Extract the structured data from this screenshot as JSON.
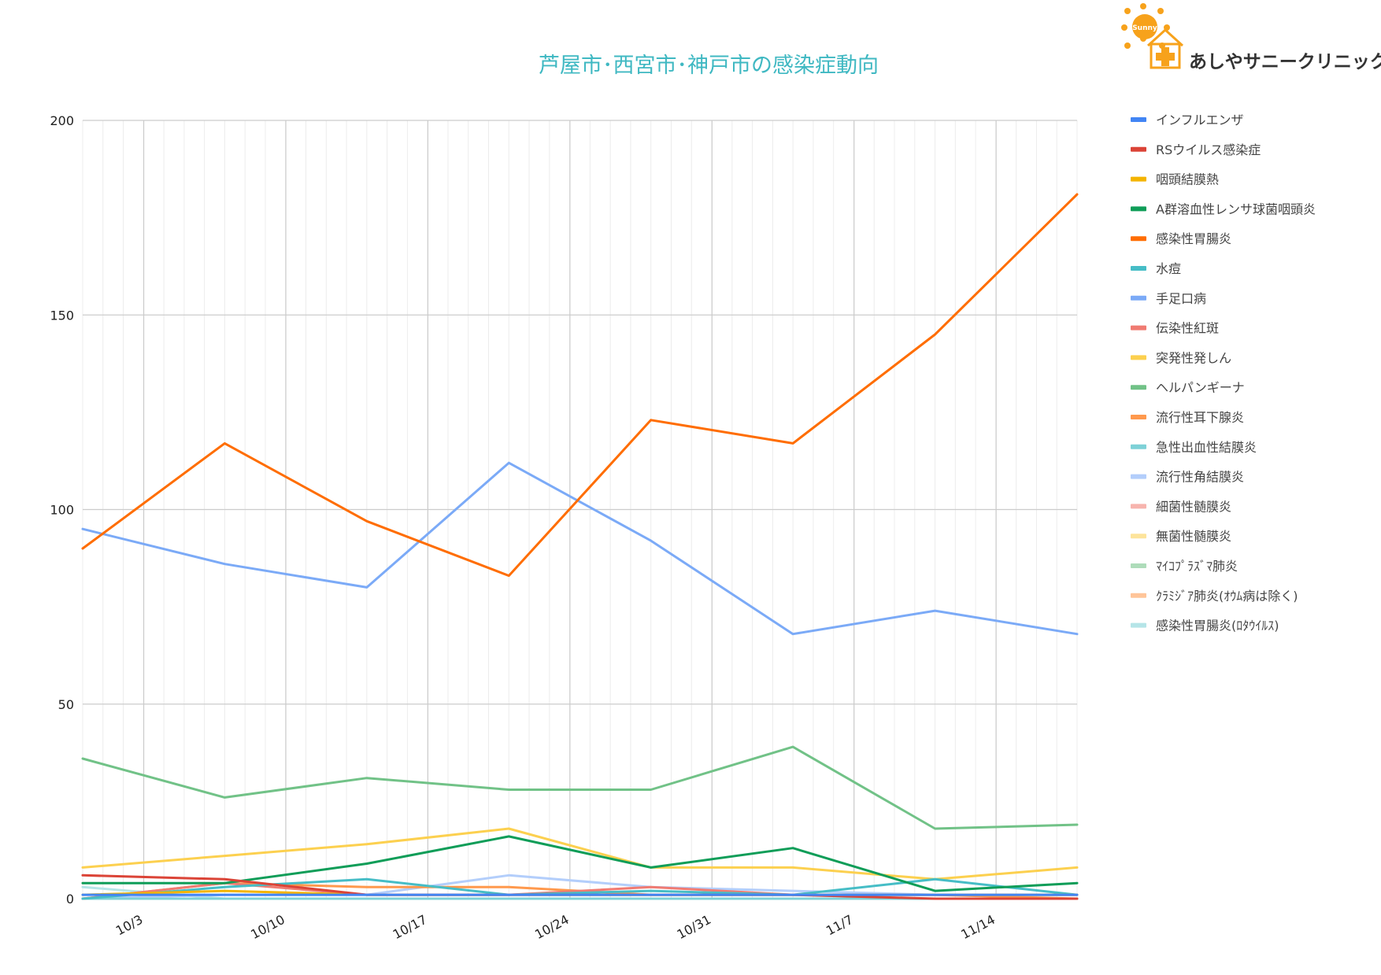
{
  "logo": {
    "name": "あしやサニークリニック",
    "sun_text": "Sunny"
  },
  "chart_data": {
    "type": "line",
    "title": "芦屋市･西宮市･神戸市の感染症動向",
    "xlabel": "",
    "ylabel": "",
    "ylim": [
      0,
      200
    ],
    "y_ticks": [
      0,
      50,
      100,
      150,
      200
    ],
    "x_ticks": [
      {
        "label": "10/3",
        "week": 0.43
      },
      {
        "label": "10/10",
        "week": 1.43
      },
      {
        "label": "10/17",
        "week": 2.43
      },
      {
        "label": "10/24",
        "week": 3.43
      },
      {
        "label": "10/31",
        "week": 4.43
      },
      {
        "label": "11/7",
        "week": 5.43
      },
      {
        "label": "11/14",
        "week": 6.43
      }
    ],
    "x": [
      "9/30",
      "10/7",
      "10/14",
      "10/21",
      "10/28",
      "11/4",
      "11/11",
      "11/18"
    ],
    "grid": true,
    "legend_position": "right",
    "series": [
      {
        "name": "インフルエンザ",
        "color": "#4285f4",
        "values": [
          1,
          1,
          1,
          1,
          1,
          1,
          1,
          1
        ]
      },
      {
        "name": "RSウイルス感染症",
        "color": "#db4437",
        "values": [
          6,
          5,
          1,
          1,
          1,
          1,
          0,
          0
        ]
      },
      {
        "name": "咽頭結膜熱",
        "color": "#f4b400",
        "values": [
          1,
          2,
          1,
          1,
          1,
          1,
          1,
          1
        ]
      },
      {
        "name": "A群溶血性レンサ球菌咽頭炎",
        "color": "#0f9d58",
        "values": [
          4,
          4,
          9,
          16,
          8,
          13,
          2,
          4
        ]
      },
      {
        "name": "感染性胃腸炎",
        "color": "#ff6d01",
        "values": [
          90,
          117,
          97,
          83,
          123,
          117,
          145,
          181
        ]
      },
      {
        "name": "水痘",
        "color": "#46bdc6",
        "values": [
          0,
          3,
          5,
          1,
          2,
          1,
          5,
          1
        ]
      },
      {
        "name": "手足口病",
        "color": "#7baaf7",
        "values": [
          95,
          86,
          80,
          112,
          92,
          68,
          74,
          68
        ]
      },
      {
        "name": "伝染性紅斑",
        "color": "#f07b72",
        "values": [
          0,
          4,
          1,
          1,
          3,
          1,
          1,
          1
        ]
      },
      {
        "name": "突発性発しん",
        "color": "#fcd04f",
        "values": [
          8,
          11,
          14,
          18,
          8,
          8,
          5,
          8
        ]
      },
      {
        "name": "ヘルパンギーナ",
        "color": "#71c287",
        "values": [
          36,
          26,
          31,
          28,
          28,
          39,
          18,
          19
        ]
      },
      {
        "name": "流行性耳下腺炎",
        "color": "#ff994d",
        "values": [
          0,
          4,
          3,
          3,
          1,
          1,
          1,
          0
        ]
      },
      {
        "name": "急性出血性結膜炎",
        "color": "#7ed1d7",
        "values": [
          0,
          0,
          0,
          0,
          0,
          0,
          0,
          0
        ]
      },
      {
        "name": "流行性角結膜炎",
        "color": "#b3cefb",
        "values": [
          0,
          1,
          1,
          6,
          3,
          2,
          1,
          1
        ]
      },
      {
        "name": "細菌性髄膜炎",
        "color": "#f7b4ae",
        "values": [
          0,
          0,
          0,
          0,
          0,
          0,
          0,
          0
        ]
      },
      {
        "name": "無菌性髄膜炎",
        "color": "#fde49b",
        "values": [
          0,
          0,
          0,
          0,
          0,
          0,
          0,
          0
        ]
      },
      {
        "name": "ﾏｲｺﾌﾟﾗｽﾞﾏ肺炎",
        "color": "#aedcba",
        "values": [
          0,
          0,
          0,
          0,
          0,
          0,
          0,
          0
        ]
      },
      {
        "name": "ｸﾗﾐｼﾞｱ肺炎(ｵｳﾑ病は除く)",
        "color": "#ffc599",
        "values": [
          0,
          0,
          0,
          0,
          0,
          0,
          0,
          0
        ]
      },
      {
        "name": "感染性胃腸炎(ﾛﾀｳｲﾙｽ)",
        "color": "#b5e5e8",
        "values": [
          3,
          0,
          0,
          0,
          0,
          0,
          0,
          0
        ]
      }
    ]
  }
}
